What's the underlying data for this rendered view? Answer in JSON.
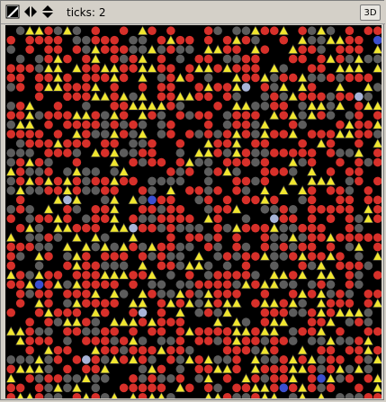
{
  "toolbar": {
    "buttons": [
      {
        "icon": "zoom-toggle-icon"
      },
      {
        "icon": "left-right-arrows-icon"
      },
      {
        "icon": "up-down-arrows-icon"
      }
    ],
    "ticks_label": "ticks:",
    "ticks_value": "2",
    "view_3d_label": "3D"
  },
  "world": {
    "background": "#000000",
    "agent_colors": {
      "red": "#d7302a",
      "gray": "#5c5c5c",
      "yellow": "#f0e630",
      "blue": "#3b4fd0",
      "light": "#a8b4d8"
    },
    "agent_shapes": [
      "circle",
      "triangle"
    ]
  }
}
